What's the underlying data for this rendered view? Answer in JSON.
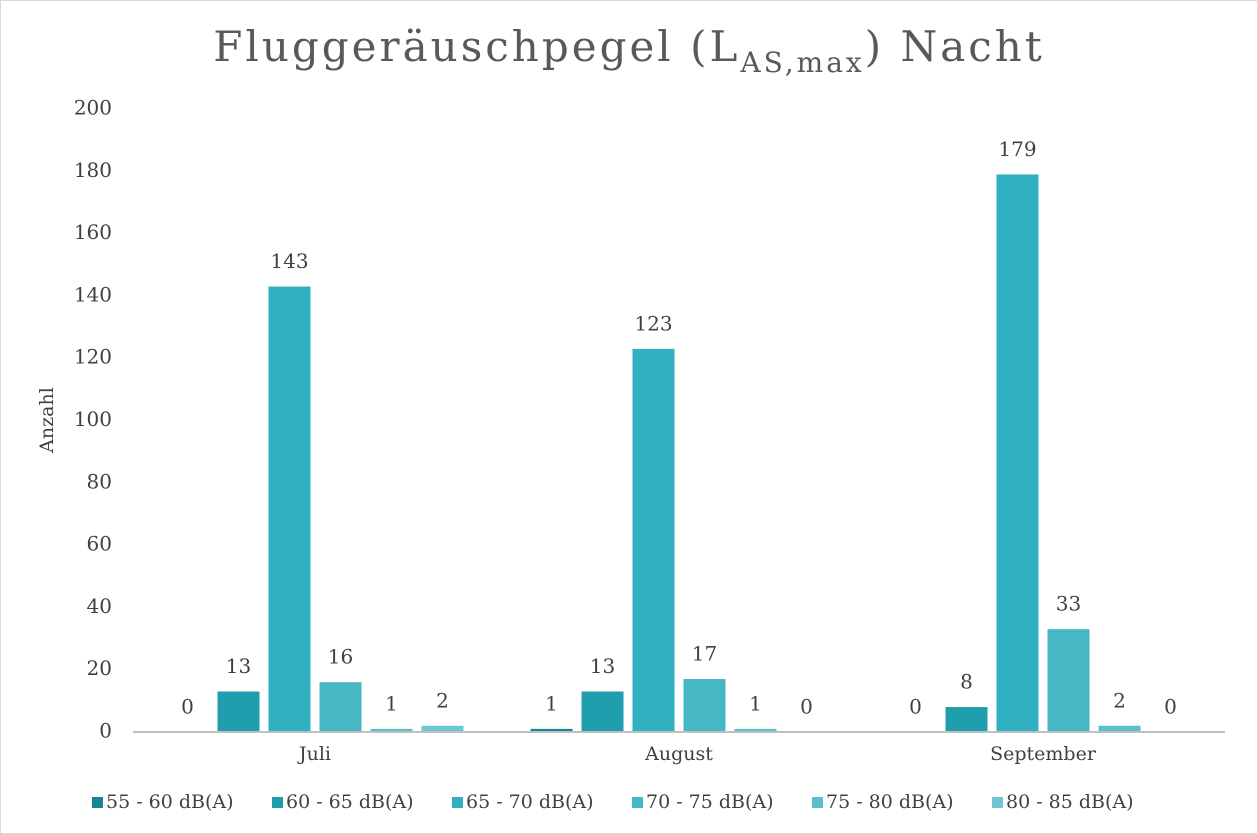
{
  "chart_data": {
    "type": "bar",
    "title": [
      "Fluggeräuschpegel (L",
      "AS,max",
      ") Nacht"
    ],
    "y_label": "Anzahl",
    "categories": [
      "Juli",
      "August",
      "September"
    ],
    "series": [
      {
        "name": "55 - 60 dB(A)",
        "color": "#178594",
        "values": [
          0,
          1,
          0
        ]
      },
      {
        "name": "60 - 65 dB(A)",
        "color": "#1f9dad",
        "values": [
          13,
          13,
          8
        ]
      },
      {
        "name": "65 - 70 dB(A)",
        "color": "#30b1c1",
        "values": [
          143,
          123,
          179
        ]
      },
      {
        "name": "70 - 75 dB(A)",
        "color": "#45b7c5",
        "values": [
          16,
          17,
          33
        ]
      },
      {
        "name": "75 - 80 dB(A)",
        "color": "#58bfcb",
        "values": [
          1,
          1,
          2
        ]
      },
      {
        "name": "80 - 85 dB(A)",
        "color": "#6cc7d2",
        "values": [
          2,
          0,
          0
        ]
      }
    ],
    "ylim": [
      0,
      200
    ],
    "yticks": [
      0,
      20,
      40,
      60,
      80,
      100,
      120,
      140,
      160,
      180,
      200
    ],
    "grid": false
  }
}
